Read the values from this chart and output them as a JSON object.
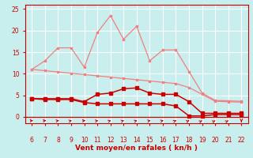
{
  "x": [
    6,
    7,
    8,
    9,
    10,
    11,
    12,
    13,
    14,
    15,
    16,
    17,
    18,
    19,
    20,
    21,
    22
  ],
  "line_pink_straight": [
    11.0,
    10.7,
    10.4,
    10.1,
    9.8,
    9.5,
    9.2,
    8.9,
    8.6,
    8.3,
    8.0,
    7.7,
    6.8,
    5.2,
    3.6,
    3.5,
    3.4
  ],
  "line_pink_jagged": [
    11.0,
    13.0,
    16.0,
    16.0,
    11.5,
    19.5,
    23.5,
    18.0,
    21.0,
    13.0,
    15.5,
    15.5,
    10.5,
    5.5,
    3.8,
    3.7,
    3.6
  ],
  "line_red_upper": [
    4.2,
    4.2,
    4.2,
    4.2,
    3.5,
    5.2,
    5.5,
    6.5,
    6.7,
    5.5,
    5.2,
    5.2,
    3.5,
    0.8,
    0.8,
    0.8,
    0.8
  ],
  "line_red_lower": [
    4.2,
    4.0,
    4.0,
    4.0,
    3.3,
    3.0,
    3.0,
    3.0,
    3.0,
    3.0,
    3.0,
    2.5,
    0.2,
    0.2,
    0.5,
    0.5,
    0.5
  ],
  "color_pink": "#f08080",
  "color_dark_red": "#cc0000",
  "color_medium_red": "#dd2020",
  "bg_color": "#c8eeee",
  "grid_color": "#aadddd",
  "axis_color": "#cc0000",
  "xlabel": "Vent moyen/en rafales ( kn/h )",
  "xlim": [
    5.5,
    22.5
  ],
  "ylim": [
    -1.5,
    26
  ],
  "yticks": [
    0,
    5,
    10,
    15,
    20,
    25
  ],
  "xticks": [
    6,
    7,
    8,
    9,
    10,
    11,
    12,
    13,
    14,
    15,
    16,
    17,
    18,
    19,
    20,
    21,
    22
  ],
  "arrow_angles_deg": [
    10,
    10,
    25,
    35,
    10,
    30,
    40,
    40,
    40,
    30,
    35,
    45,
    50,
    55,
    55,
    55,
    270
  ]
}
